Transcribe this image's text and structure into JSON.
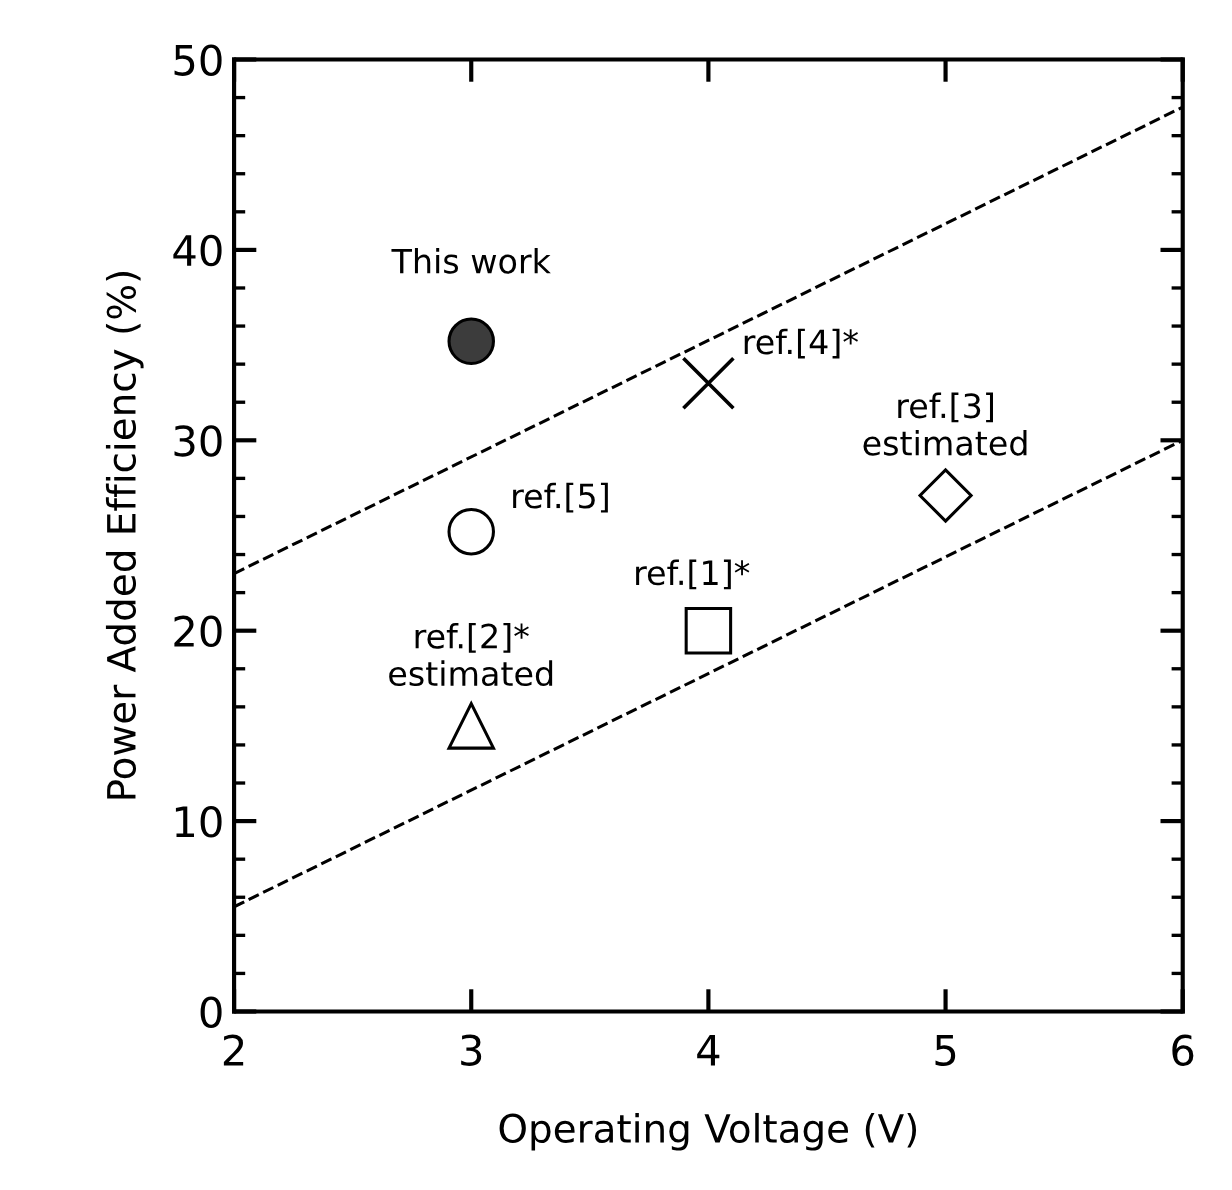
{
  "chart_data": {
    "type": "scatter",
    "xlabel": "Operating Voltage (V)",
    "ylabel": "Power Added Efficiency (%)",
    "xlim": [
      2,
      6
    ],
    "ylim": [
      0,
      50
    ],
    "xticks": [
      2,
      3,
      4,
      5,
      6
    ],
    "yticks": [
      0,
      10,
      20,
      30,
      40,
      50
    ],
    "grid": false,
    "legend": false,
    "series": [
      {
        "name": "This work",
        "marker": "circle",
        "color": "#000000",
        "colors": [
          "#3c3c3c"
        ],
        "x": [
          3
        ],
        "values": [
          35.2
        ]
      },
      {
        "name": "ref.[4]*",
        "marker": "cross",
        "color": "#000000",
        "x": [
          4
        ],
        "values": [
          33
        ]
      },
      {
        "name": "ref.[3]\nestimated",
        "marker": "diamond",
        "color": "#000000",
        "x": [
          5
        ],
        "values": [
          27.1
        ]
      },
      {
        "name": "ref.[5]",
        "marker": "circle",
        "color": "#000000",
        "x": [
          3
        ],
        "values": [
          25.2
        ]
      },
      {
        "name": "ref.[1]*",
        "marker": "square",
        "color": "#000000",
        "x": [
          4
        ],
        "values": [
          20
        ]
      },
      {
        "name": "ref.[2]*\nestimated",
        "marker": "triangle",
        "color": "#000000",
        "x": [
          3
        ],
        "values": [
          15
        ]
      },
      {
        "type": "line",
        "line_style": "dashed",
        "marker": "none",
        "color": "#000000",
        "x": [
          2,
          6
        ],
        "values": [
          23,
          47.5
        ]
      },
      {
        "type": "line",
        "line_style": "dashed",
        "marker": "none",
        "color": "#000000",
        "x": [
          2,
          6
        ],
        "values": [
          5.5,
          30
        ]
      }
    ]
  }
}
